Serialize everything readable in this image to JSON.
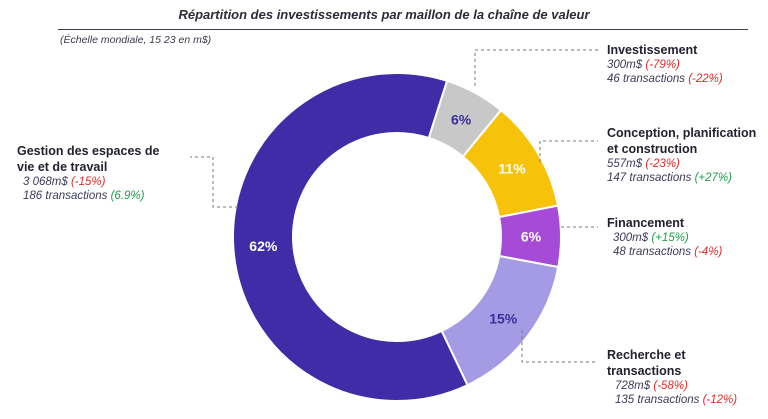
{
  "title": "Répartition des investissements par maillon de la chaîne de valeur",
  "subtitle": "(Échelle mondiale, 15 23 en m$)",
  "colors": {
    "neg": "#e02b2b",
    "pos": "#1e9e4a"
  },
  "chart_data": {
    "type": "pie",
    "variant": "donut",
    "title": "Répartition des investissements par maillon de la chaîne de valeur",
    "segments": [
      {
        "key": "investissement",
        "name": "Investissement",
        "pct": 6,
        "pct_label": "6%",
        "color": "#c8c8c8",
        "text_color": "#3a2f9a",
        "amount": "300m$",
        "amount_change": "(-79%)",
        "amount_change_sign": "neg",
        "transactions": "46 transactions",
        "transactions_change": "(-22%)",
        "transactions_change_sign": "neg"
      },
      {
        "key": "conception",
        "name": "Conception, planification et construction",
        "pct": 11,
        "pct_label": "11%",
        "color": "#f6c30a",
        "text_color": "#ffffff",
        "amount": "557m$",
        "amount_change": "(-23%)",
        "amount_change_sign": "neg",
        "transactions": "147 transactions",
        "transactions_change": "(+27%)",
        "transactions_change_sign": "pos"
      },
      {
        "key": "financement",
        "name": "Financement",
        "pct": 6,
        "pct_label": "6%",
        "color": "#a64ad8",
        "text_color": "#ffffff",
        "amount": "300m$",
        "amount_change": "(+15%)",
        "amount_change_sign": "pos",
        "transactions": "48 transactions",
        "transactions_change": "(-4%)",
        "transactions_change_sign": "neg"
      },
      {
        "key": "recherche",
        "name": "Recherche et transactions",
        "pct": 15,
        "pct_label": "15%",
        "color": "#a59be4",
        "text_color": "#3a2f9a",
        "amount": "728m$",
        "amount_change": "(-58%)",
        "amount_change_sign": "neg",
        "transactions": "135 transactions",
        "transactions_change": "(-12%)",
        "transactions_change_sign": "neg"
      },
      {
        "key": "gestion",
        "name": "Gestion des espaces de vie et de travail",
        "pct": 62,
        "pct_label": "62%",
        "color": "#3f2ca6",
        "text_color": "#ffffff",
        "amount": "3 068m$",
        "amount_change": "(-15%)",
        "amount_change_sign": "neg",
        "transactions": "186 transactions",
        "transactions_change": "(6.9%)",
        "transactions_change_sign": "pos"
      }
    ]
  }
}
